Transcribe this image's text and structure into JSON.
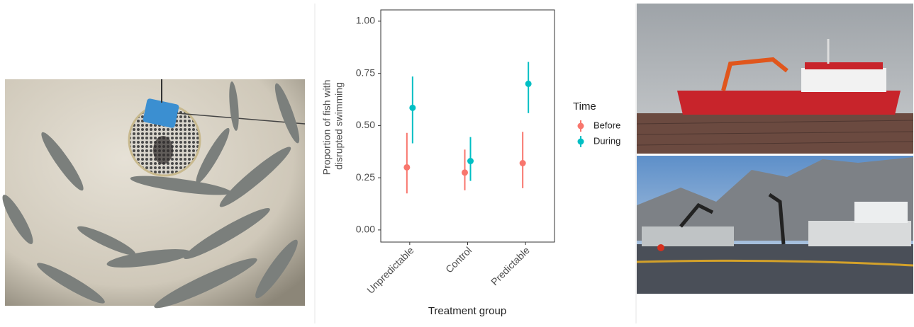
{
  "chart_data": {
    "type": "pointrange",
    "ylabel": [
      "Proportion of fish with",
      "disrupted swimming"
    ],
    "xlabel": "Treatment group",
    "categories": [
      "Unpredictable",
      "Control",
      "Predictable"
    ],
    "legend_title": "Time",
    "series": [
      {
        "name": "Before",
        "color": "#F8766D",
        "values": [
          0.3,
          0.275,
          0.32
        ],
        "lower": [
          0.175,
          0.19,
          0.2
        ],
        "upper": [
          0.465,
          0.385,
          0.47
        ]
      },
      {
        "name": "During",
        "color": "#00BFC4",
        "values": [
          0.585,
          0.33,
          0.7
        ],
        "lower": [
          0.415,
          0.235,
          0.56
        ],
        "upper": [
          0.735,
          0.445,
          0.805
        ]
      }
    ],
    "ylim": [
      -0.058,
      1.054
    ],
    "yticks": [
      {
        "value": 0,
        "label": "0.00"
      },
      {
        "value": 0.25,
        "label": "0.25"
      },
      {
        "value": 0.5,
        "label": "0.50"
      },
      {
        "value": 0.75,
        "label": "0.75"
      },
      {
        "value": 1,
        "label": "1.00"
      }
    ],
    "grid": false,
    "legend": "right"
  }
}
